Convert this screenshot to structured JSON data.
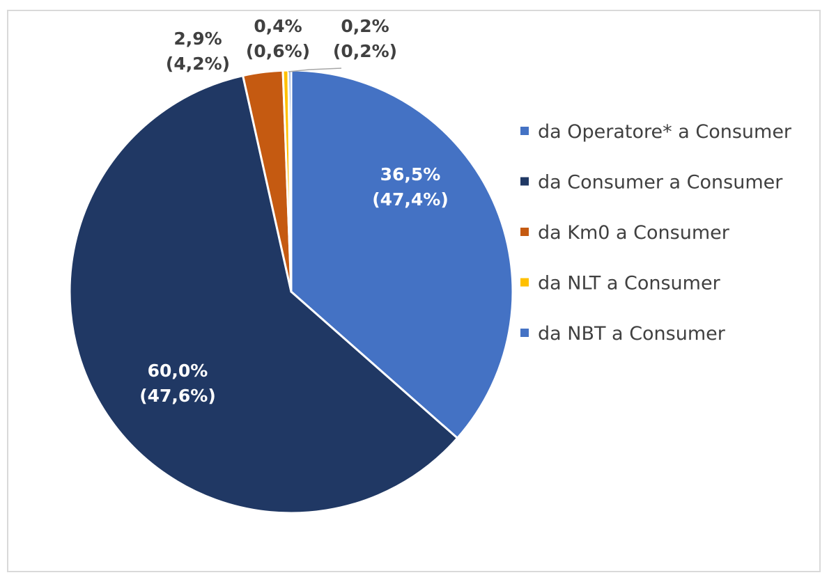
{
  "chart_data": {
    "type": "pie",
    "title": "",
    "categories": [
      "da Operatore* a Consumer",
      "da Consumer a Consumer",
      "da Km0 a Consumer",
      "da NLT a Consumer",
      "da NBT a Consumer"
    ],
    "values": [
      36.5,
      60.0,
      2.9,
      0.4,
      0.2
    ],
    "secondary_values": [
      47.4,
      47.6,
      4.2,
      0.6,
      0.2
    ],
    "labels": [
      {
        "line1": "36,5%",
        "line2": "(47,4%)"
      },
      {
        "line1": "60,0%",
        "line2": "(47,6%)"
      },
      {
        "line1": "2,9%",
        "line2": "(4,2%)"
      },
      {
        "line1": "0,4%",
        "line2": "(0,6%)"
      },
      {
        "line1": "0,2%",
        "line2": "(0,2%)"
      }
    ],
    "colors": [
      "#4472C4",
      "#203864",
      "#C55A11",
      "#FFC000",
      "#4472C4"
    ],
    "legend": {
      "position": "right",
      "entries": [
        "da Operatore* a Consumer",
        "da Consumer a Consumer",
        "da Km0 a Consumer",
        "da NLT a Consumer",
        "da NBT a Consumer"
      ]
    }
  }
}
